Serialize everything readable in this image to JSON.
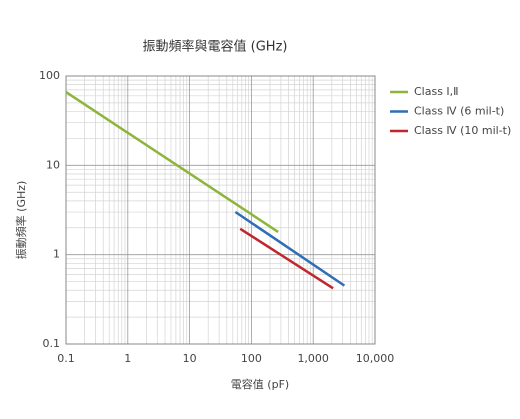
{
  "chart_data": {
    "type": "line",
    "title": "振動頻率與電容值 (GHz)",
    "x_label": "電容值 (pF)",
    "y_label": "振動頻率 (GHz)",
    "xscale": "log",
    "yscale": "log",
    "grid": true,
    "minor_grid": true,
    "legend": "right",
    "xlim": [
      0.1,
      10000
    ],
    "ylim": [
      0.1,
      100
    ],
    "xticks": [
      0.1,
      1,
      10,
      100,
      {
        "value": 1000,
        "label": "1,000"
      },
      {
        "value": 10000,
        "label": "10,000"
      }
    ],
    "yticks": [
      0.1,
      1,
      10,
      100
    ],
    "series": [
      {
        "name": "Class Ⅰ,Ⅱ",
        "color": "#8db53c",
        "x": [
          0.1,
          270
        ],
        "values": [
          66,
          1.8
        ]
      },
      {
        "name": "Class Ⅳ (6 mil-t)",
        "color": "#2f6db5",
        "x": [
          55,
          3200
        ],
        "values": [
          3.0,
          0.45
        ]
      },
      {
        "name": "Class Ⅳ (10 mil-t)",
        "color": "#c0262d",
        "x": [
          66,
          2100
        ],
        "values": [
          1.95,
          0.42
        ]
      }
    ]
  }
}
